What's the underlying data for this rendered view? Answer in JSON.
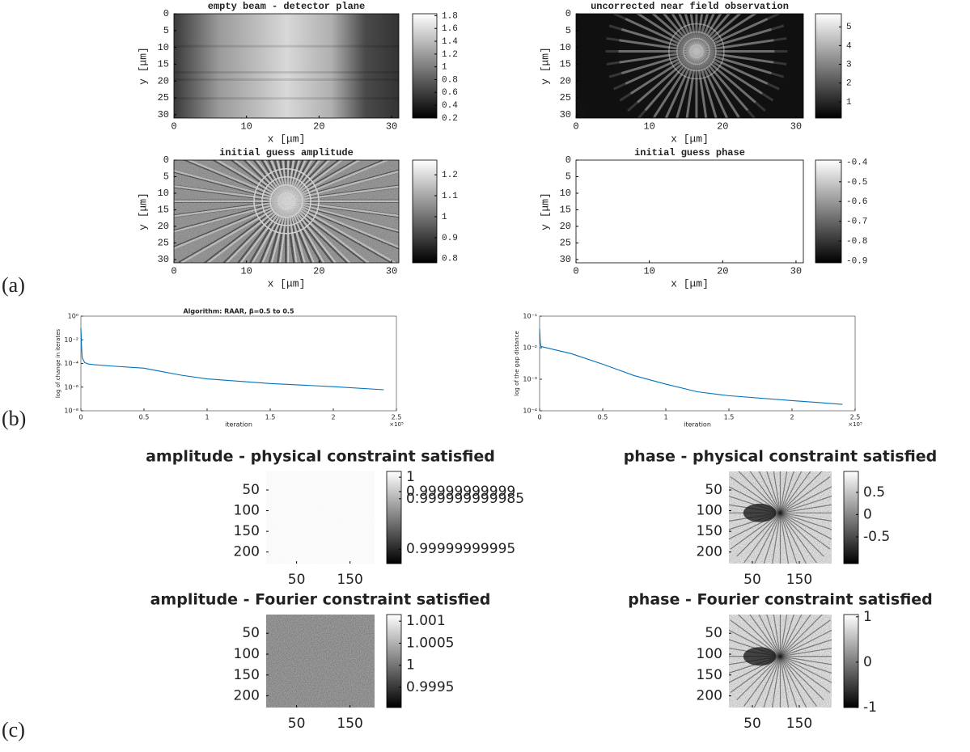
{
  "panel_labels": [
    "(a)",
    "(b)",
    "(c)"
  ],
  "chart_data": [
    {
      "type": "image",
      "title": "empty beam - detector plane",
      "xlabel": "x [μm]",
      "ylabel": "y [μm]",
      "xlim": [
        0,
        31
      ],
      "ylim": [
        31,
        0
      ],
      "xticks": [
        0,
        10,
        20,
        30
      ],
      "yticks": [
        0,
        5,
        10,
        15,
        20,
        25,
        30
      ],
      "colormap": "gray",
      "clim": [
        0.2,
        1.83
      ],
      "cticks": [
        0.2,
        0.4,
        0.6,
        0.8,
        1,
        1.2,
        1.4,
        1.6,
        1.8
      ]
    },
    {
      "type": "image",
      "title": "uncorrected near field observation",
      "xlabel": "x [μm]",
      "ylabel": "y [μm]",
      "xlim": [
        0,
        31
      ],
      "ylim": [
        31,
        0
      ],
      "xticks": [
        0,
        10,
        20,
        30
      ],
      "yticks": [
        0,
        5,
        10,
        15,
        20,
        25,
        30
      ],
      "colormap": "gray",
      "clim": [
        0.13,
        5.7
      ],
      "cticks": [
        1,
        2,
        3,
        4,
        5
      ]
    },
    {
      "type": "image",
      "title": "initial guess amplitude",
      "xlabel": "x [μm]",
      "ylabel": "y [μm]",
      "xlim": [
        0,
        31
      ],
      "ylim": [
        31,
        0
      ],
      "xticks": [
        0,
        10,
        20,
        30
      ],
      "yticks": [
        0,
        5,
        10,
        15,
        20,
        25,
        30
      ],
      "colormap": "gray",
      "clim": [
        0.78,
        1.27
      ],
      "cticks": [
        0.8,
        0.9,
        1,
        1.1,
        1.2
      ]
    },
    {
      "type": "image",
      "title": "initial guess phase",
      "xlabel": "x [μm]",
      "ylabel": "y [μm]",
      "xlim": [
        0,
        31
      ],
      "ylim": [
        31,
        0
      ],
      "xticks": [
        0,
        10,
        20,
        30
      ],
      "yticks": [
        0,
        5,
        10,
        15,
        20,
        25,
        30
      ],
      "colormap": "gray",
      "clim": [
        -0.91,
        -0.39
      ],
      "cticks": [
        -0.9,
        -0.8,
        -0.7,
        -0.6,
        -0.5,
        -0.4
      ]
    },
    {
      "type": "line",
      "title": "Algorithm: RAAR, β=0.5 to 0.5",
      "xlabel": "iteration",
      "ylabel": "log of change in iterates",
      "x_multiplier": "×10⁵",
      "xlim": [
        0,
        250000
      ],
      "ylim": [
        1e-08,
        1
      ],
      "yscale": "log",
      "xticks": [
        0,
        {
          "value": 50000,
          "label": "0.5"
        },
        {
          "value": 100000,
          "label": "1"
        },
        {
          "value": 150000,
          "label": "1.5"
        },
        {
          "value": 200000,
          "label": "2"
        },
        {
          "value": 250000,
          "label": "2.5"
        }
      ],
      "yticks": [
        {
          "value": 1e-08,
          "label": "10⁻⁸"
        },
        {
          "value": 1e-06,
          "label": "10⁻⁶"
        },
        {
          "value": 0.0001,
          "label": "10⁻⁴"
        },
        {
          "value": 0.01,
          "label": "10⁻²"
        },
        {
          "value": 1,
          "label": "10⁰"
        }
      ],
      "x": [
        0,
        500,
        1000,
        3000,
        6000,
        10000,
        25000,
        50000,
        60000,
        80000,
        100000,
        150000,
        200000,
        240000
      ],
      "series": [
        {
          "color": "#0072bd",
          "values": [
            0.1,
            0.003,
            0.0003,
            0.00012,
            9e-05,
            8e-05,
            6e-05,
            4e-05,
            2.5e-05,
            1e-05,
            5e-06,
            2e-06,
            1.1e-06,
            6e-07
          ]
        }
      ]
    },
    {
      "type": "line",
      "xlabel": "iteration",
      "ylabel": "log of the gap distance",
      "x_multiplier": "×10⁵",
      "xlim": [
        0,
        250000
      ],
      "ylim": [
        0.0001,
        0.1
      ],
      "yscale": "log",
      "xticks": [
        0,
        {
          "value": 50000,
          "label": "0.5"
        },
        {
          "value": 100000,
          "label": "1"
        },
        {
          "value": 150000,
          "label": "1.5"
        },
        {
          "value": 200000,
          "label": "2"
        },
        {
          "value": 250000,
          "label": "2.5"
        }
      ],
      "yticks": [
        {
          "value": 0.0001,
          "label": "10⁻⁴"
        },
        {
          "value": 0.001,
          "label": "10⁻³"
        },
        {
          "value": 0.01,
          "label": "10⁻²"
        },
        {
          "value": 0.1,
          "label": "10⁻¹"
        }
      ],
      "x": [
        0,
        500,
        1000,
        3000,
        10000,
        25000,
        50000,
        75000,
        100000,
        125000,
        150000,
        200000,
        240000
      ],
      "series": [
        {
          "color": "#0072bd",
          "values": [
            0.04,
            0.015,
            0.011,
            0.0105,
            0.009,
            0.0065,
            0.003,
            0.0013,
            0.0007,
            0.0004,
            0.0003,
            0.00021,
            0.00016
          ]
        }
      ]
    },
    {
      "type": "image",
      "title": "amplitude - physical constraint satisfied",
      "xlim": [
        -7,
        196
      ],
      "ylim": [
        228,
        5
      ],
      "xticks": [
        50,
        150
      ],
      "yticks": [
        50,
        100,
        150,
        200
      ],
      "colormap": "gray",
      "clim": [
        0.99999999994,
        1.000000000004
      ],
      "cticks": [
        0.99999999995,
        0.999999999985,
        0.99999999999,
        1
      ]
    },
    {
      "type": "image",
      "title": "phase - physical constraint satisfied",
      "xlim": [
        0,
        219
      ],
      "ylim": [
        228,
        5
      ],
      "xticks": [
        50,
        150
      ],
      "yticks": [
        50,
        100,
        150,
        200
      ],
      "colormap": "gray",
      "clim": [
        -1.1,
        0.97
      ],
      "cticks": [
        -0.5,
        0,
        0.5
      ]
    },
    {
      "type": "image",
      "title": "amplitude - Fourier constraint satisfied",
      "xlim": [
        -7,
        196
      ],
      "ylim": [
        228,
        5
      ],
      "xticks": [
        50,
        150
      ],
      "yticks": [
        50,
        100,
        150,
        200
      ],
      "colormap": "gray",
      "clim": [
        0.99904,
        1.00115
      ],
      "cticks": [
        0.9995,
        1,
        1.0005,
        1.001
      ]
    },
    {
      "type": "image",
      "title": "phase - Fourier constraint satisfied",
      "xlim": [
        0,
        219
      ],
      "ylim": [
        228,
        5
      ],
      "xticks": [
        50,
        150
      ],
      "yticks": [
        50,
        100,
        150,
        200
      ],
      "colormap": "gray",
      "clim": [
        -1,
        1.05
      ],
      "cticks": [
        -1,
        0,
        1
      ]
    }
  ]
}
